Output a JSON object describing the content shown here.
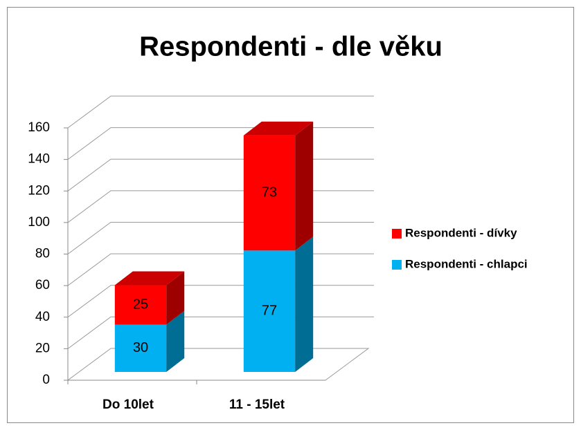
{
  "chart_data": {
    "type": "bar3d_stacked",
    "title": "Respondenti - dle věku",
    "categories": [
      "Do 10let",
      "11 - 15let"
    ],
    "series": [
      {
        "name": "Respondenti - chlapci",
        "color": "#00b0f0",
        "values": [
          30,
          77
        ]
      },
      {
        "name": "Respondenti - dívky",
        "color": "#ff0000",
        "values": [
          25,
          73
        ]
      }
    ],
    "ylim": [
      0,
      160
    ],
    "yticks": [
      0,
      20,
      40,
      60,
      80,
      100,
      120,
      140,
      160
    ],
    "grid": true,
    "legend": "right"
  }
}
